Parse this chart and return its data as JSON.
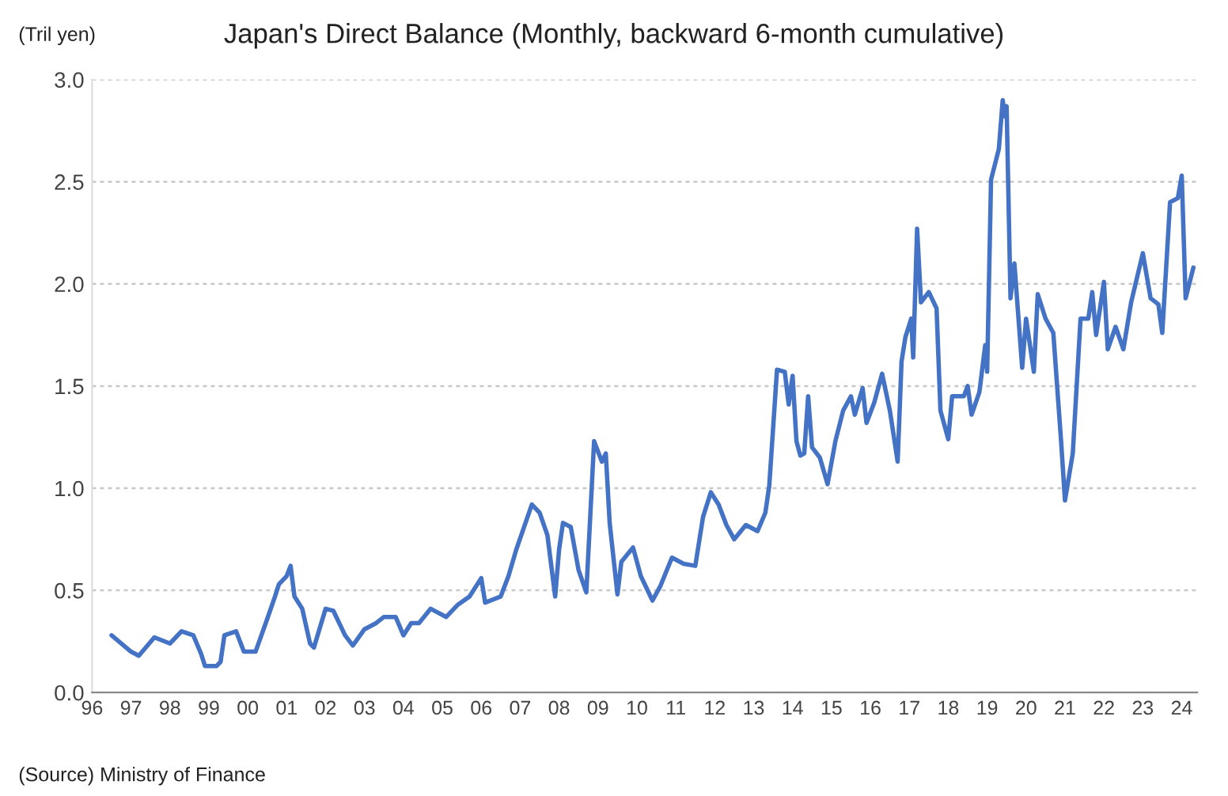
{
  "chart_data": {
    "type": "line",
    "title": "Japan's Direct Balance (Monthly, backward 6-month cumulative)",
    "ylabel": "(Tril yen)",
    "annotations": [
      "(Source) Ministry of Finance"
    ],
    "x": [
      1996.5,
      1997.0,
      1997.2,
      1997.6,
      1998.0,
      1998.3,
      1998.6,
      1998.8,
      1998.9,
      1999.2,
      1999.3,
      1999.4,
      1999.7,
      1999.9,
      2000.2,
      2000.5,
      2000.7,
      2000.8,
      2001.0,
      2001.1,
      2001.2,
      2001.4,
      2001.6,
      2001.7,
      2002.0,
      2002.2,
      2002.5,
      2002.7,
      2003.0,
      2003.3,
      2003.5,
      2003.8,
      2004.0,
      2004.2,
      2004.4,
      2004.7,
      2005.1,
      2005.4,
      2005.7,
      2006.0,
      2006.1,
      2006.5,
      2006.7,
      2006.9,
      2007.1,
      2007.3,
      2007.5,
      2007.7,
      2007.9,
      2008.0,
      2008.1,
      2008.3,
      2008.5,
      2008.7,
      2008.8,
      2008.9,
      2009.1,
      2009.2,
      2009.3,
      2009.5,
      2009.6,
      2009.9,
      2010.1,
      2010.4,
      2010.6,
      2010.9,
      2011.2,
      2011.5,
      2011.7,
      2011.9,
      2012.1,
      2012.3,
      2012.5,
      2012.8,
      2013.1,
      2013.3,
      2013.4,
      2013.6,
      2013.8,
      2013.9,
      2014.0,
      2014.1,
      2014.2,
      2014.3,
      2014.4,
      2014.5,
      2014.7,
      2014.9,
      2015.1,
      2015.3,
      2015.5,
      2015.6,
      2015.8,
      2015.9,
      2016.1,
      2016.3,
      2016.5,
      2016.7,
      2016.8,
      2016.9,
      2017.05,
      2017.1,
      2017.2,
      2017.3,
      2017.5,
      2017.7,
      2017.8,
      2018.0,
      2018.1,
      2018.4,
      2018.5,
      2018.6,
      2018.8,
      2018.95,
      2019.0,
      2019.1,
      2019.3,
      2019.4,
      2019.45,
      2019.5,
      2019.6,
      2019.7,
      2019.9,
      2020.0,
      2020.2,
      2020.3,
      2020.5,
      2020.7,
      2020.9,
      2021.0,
      2021.2,
      2021.4,
      2021.6,
      2021.7,
      2021.8,
      2022.0,
      2022.1,
      2022.3,
      2022.5,
      2022.7,
      2023.0,
      2023.2,
      2023.4,
      2023.5,
      2023.7,
      2023.9,
      2024.0,
      2024.1,
      2024.3
    ],
    "series": [
      {
        "color": "#4472c4",
        "values": [
          0.28,
          0.2,
          0.18,
          0.27,
          0.24,
          0.3,
          0.28,
          0.19,
          0.13,
          0.13,
          0.15,
          0.28,
          0.3,
          0.2,
          0.2,
          0.36,
          0.47,
          0.53,
          0.57,
          0.62,
          0.47,
          0.41,
          0.24,
          0.22,
          0.41,
          0.4,
          0.28,
          0.23,
          0.31,
          0.34,
          0.37,
          0.37,
          0.28,
          0.34,
          0.34,
          0.41,
          0.37,
          0.43,
          0.47,
          0.56,
          0.44,
          0.47,
          0.57,
          0.7,
          0.81,
          0.92,
          0.88,
          0.77,
          0.47,
          0.7,
          0.83,
          0.81,
          0.6,
          0.49,
          0.86,
          1.23,
          1.13,
          1.17,
          0.83,
          0.48,
          0.64,
          0.71,
          0.57,
          0.45,
          0.52,
          0.66,
          0.63,
          0.62,
          0.86,
          0.98,
          0.92,
          0.82,
          0.75,
          0.82,
          0.79,
          0.88,
          1.01,
          1.58,
          1.57,
          1.41,
          1.55,
          1.23,
          1.16,
          1.17,
          1.45,
          1.2,
          1.15,
          1.02,
          1.23,
          1.38,
          1.45,
          1.36,
          1.49,
          1.32,
          1.42,
          1.56,
          1.38,
          1.13,
          1.62,
          1.74,
          1.83,
          1.64,
          2.27,
          1.91,
          1.96,
          1.88,
          1.38,
          1.24,
          1.45,
          1.45,
          1.5,
          1.36,
          1.47,
          1.7,
          1.57,
          2.51,
          2.66,
          2.9,
          2.82,
          2.87,
          1.93,
          2.1,
          1.59,
          1.83,
          1.57,
          1.95,
          1.83,
          1.76,
          1.23,
          0.94,
          1.17,
          1.83,
          1.83,
          1.96,
          1.75,
          2.01,
          1.68,
          1.79,
          1.68,
          1.91,
          2.15,
          1.93,
          1.9,
          1.76,
          2.4,
          2.42,
          2.53,
          1.93,
          2.08
        ]
      }
    ],
    "xlim": [
      1996,
      2024.4
    ],
    "xticks": [
      {
        "value": 1996,
        "label": "96"
      },
      {
        "value": 1997,
        "label": "97"
      },
      {
        "value": 1998,
        "label": "98"
      },
      {
        "value": 1999,
        "label": "99"
      },
      {
        "value": 2000,
        "label": "00"
      },
      {
        "value": 2001,
        "label": "01"
      },
      {
        "value": 2002,
        "label": "02"
      },
      {
        "value": 2003,
        "label": "03"
      },
      {
        "value": 2004,
        "label": "04"
      },
      {
        "value": 2005,
        "label": "05"
      },
      {
        "value": 2006,
        "label": "06"
      },
      {
        "value": 2007,
        "label": "07"
      },
      {
        "value": 2008,
        "label": "08"
      },
      {
        "value": 2009,
        "label": "09"
      },
      {
        "value": 2010,
        "label": "10"
      },
      {
        "value": 2011,
        "label": "11"
      },
      {
        "value": 2012,
        "label": "12"
      },
      {
        "value": 2013,
        "label": "13"
      },
      {
        "value": 2014,
        "label": "14"
      },
      {
        "value": 2015,
        "label": "15"
      },
      {
        "value": 2016,
        "label": "16"
      },
      {
        "value": 2017,
        "label": "17"
      },
      {
        "value": 2018,
        "label": "18"
      },
      {
        "value": 2019,
        "label": "19"
      },
      {
        "value": 2020,
        "label": "20"
      },
      {
        "value": 2021,
        "label": "21"
      },
      {
        "value": 2022,
        "label": "22"
      },
      {
        "value": 2023,
        "label": "23"
      },
      {
        "value": 2024,
        "label": "24"
      }
    ],
    "ylim": [
      0,
      3.0
    ],
    "yticks": [
      {
        "value": 0,
        "label": "0.0"
      },
      {
        "value": 0.5,
        "label": "0.5"
      },
      {
        "value": 1.0,
        "label": "1.0"
      },
      {
        "value": 1.5,
        "label": "1.5"
      },
      {
        "value": 2.0,
        "label": "2.0"
      },
      {
        "value": 2.5,
        "label": "2.5"
      },
      {
        "value": 3.0,
        "label": "3.0"
      }
    ],
    "grid": "y",
    "marker": "none",
    "line_style": "solid"
  }
}
